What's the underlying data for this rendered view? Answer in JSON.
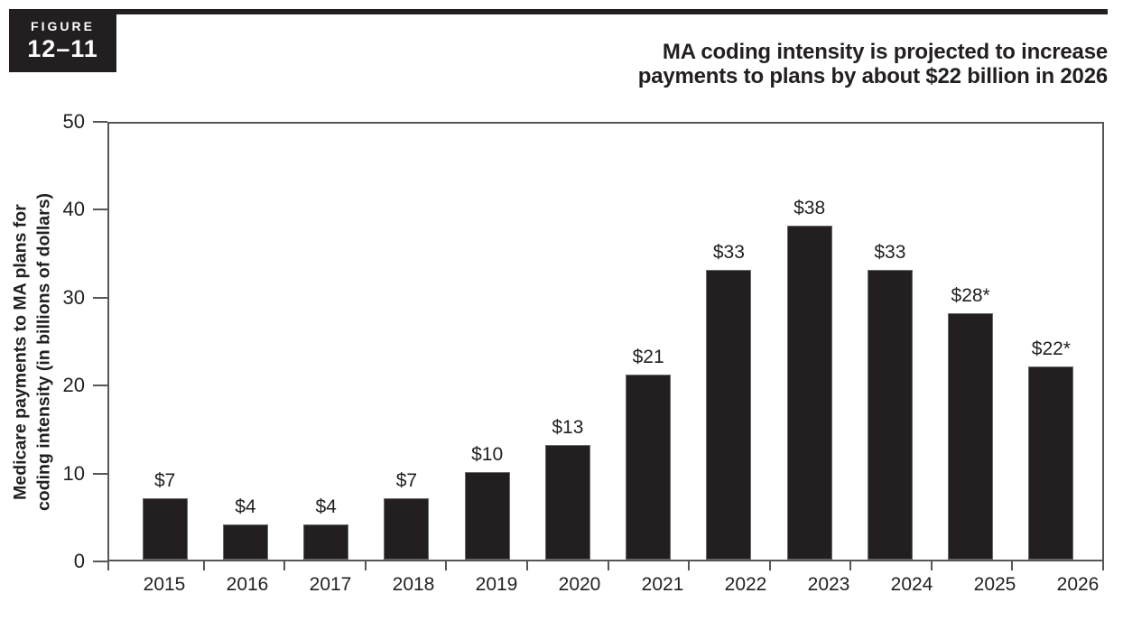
{
  "figure_badge": {
    "line1": "FIGURE",
    "line2": "12–11"
  },
  "title_lines": [
    "MA coding intensity is projected to increase",
    "payments to plans by about $22 billion in 2026"
  ],
  "chart_data": {
    "type": "bar",
    "title": "MA coding intensity is projected to increase payments to plans by about $22 billion in 2026",
    "categories": [
      "2015",
      "2016",
      "2017",
      "2018",
      "2019",
      "2020",
      "2021",
      "2022",
      "2023",
      "2024",
      "2025",
      "2026"
    ],
    "values": [
      7,
      4,
      4,
      7,
      10,
      13,
      21,
      33,
      38,
      33,
      28,
      22
    ],
    "bar_labels": [
      "$7",
      "$4",
      "$4",
      "$7",
      "$10",
      "$13",
      "$21",
      "$33",
      "$38",
      "$33",
      "$28*",
      "$22*"
    ],
    "ylabel_lines": [
      "Medicare payments to MA plans for",
      "coding intensity (in billions of dollars)"
    ],
    "xlabel": "",
    "ylim": [
      0,
      50
    ],
    "yticks": [
      0,
      10,
      20,
      30,
      40,
      50
    ],
    "grid": false,
    "legend": null,
    "colors": {
      "bar": "#231f20",
      "bar_outline": "#6a6b6e",
      "axis": "#55565a",
      "text": "#231f20",
      "badge_bg": "#231f20",
      "badge_text": "#ffffff"
    }
  }
}
